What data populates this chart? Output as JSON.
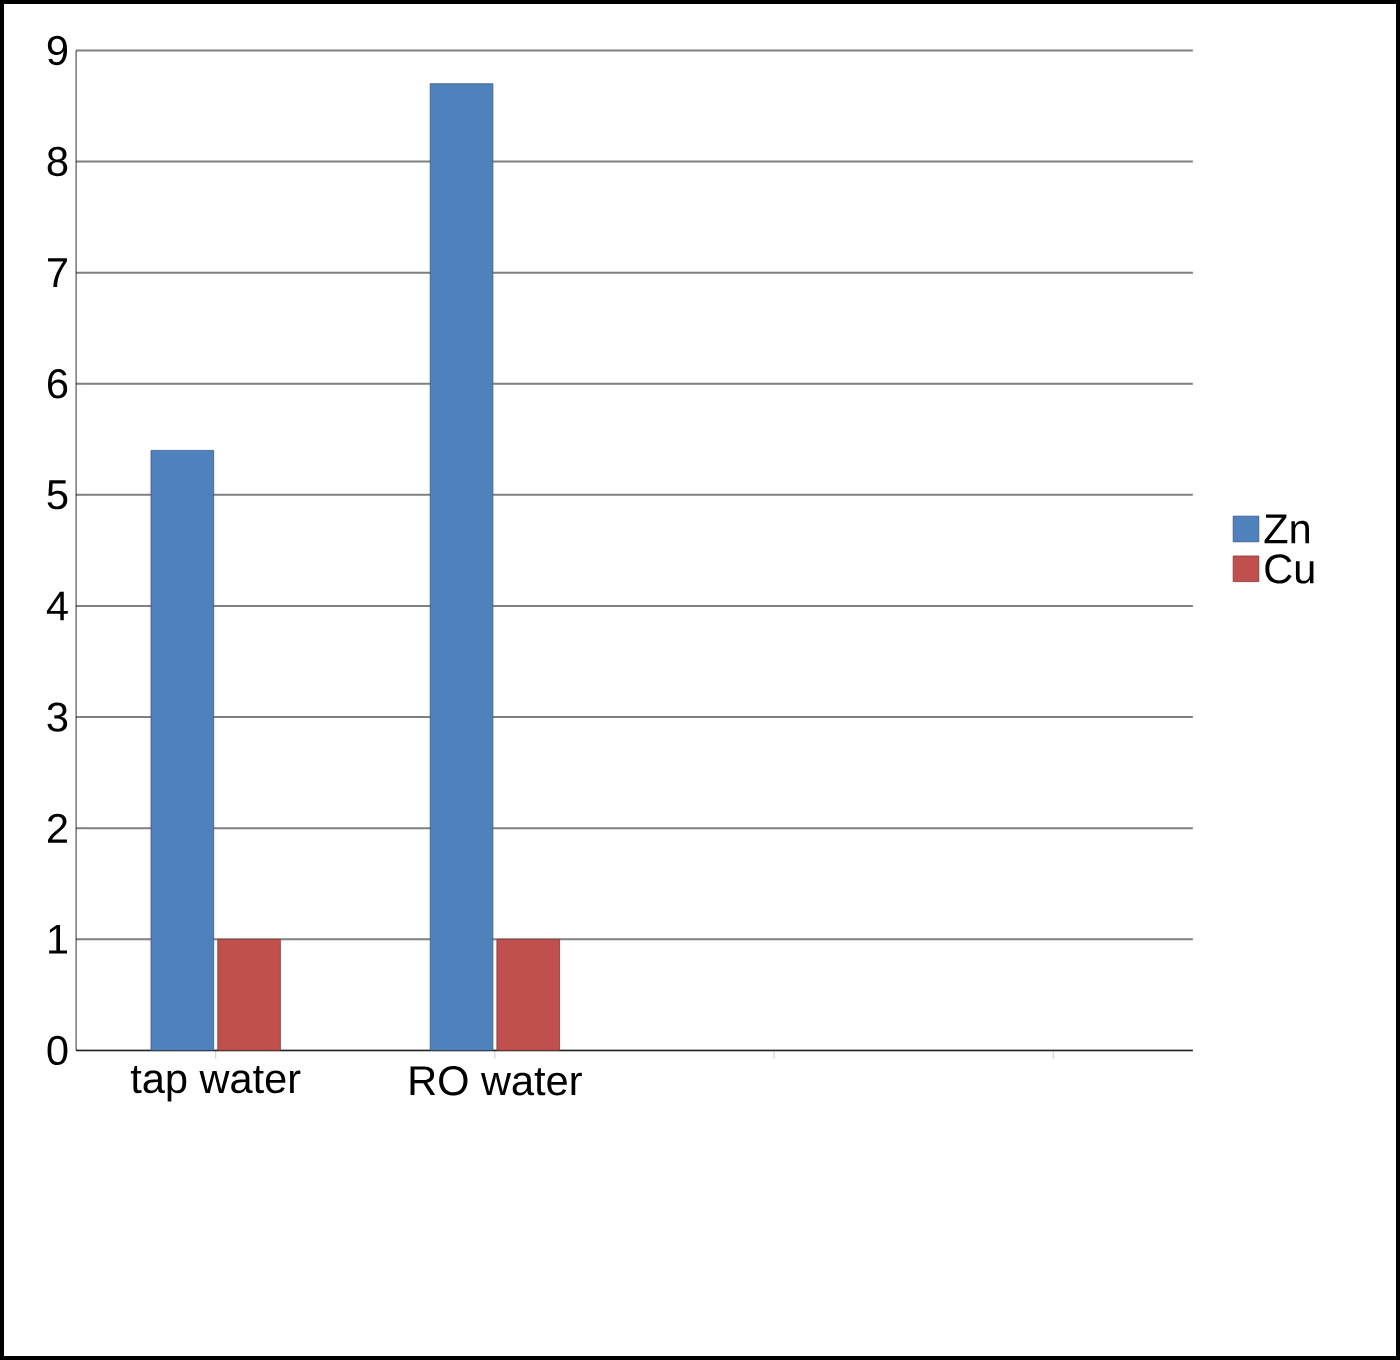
{
  "chart_data": {
    "type": "bar",
    "categories": [
      "tap water",
      "RO water",
      null,
      null
    ],
    "series": [
      {
        "name": "Zn",
        "color": "#4f81bd",
        "values": [
          5.4,
          8.7,
          null,
          null
        ]
      },
      {
        "name": "Cu",
        "color": "#c0504d",
        "values": [
          1,
          1,
          null,
          null
        ]
      }
    ],
    "ylim": [
      0,
      9
    ],
    "yticks": [
      0,
      1,
      2,
      3,
      4,
      5,
      6,
      7,
      8,
      9
    ],
    "grid": "y",
    "legend": "right"
  }
}
